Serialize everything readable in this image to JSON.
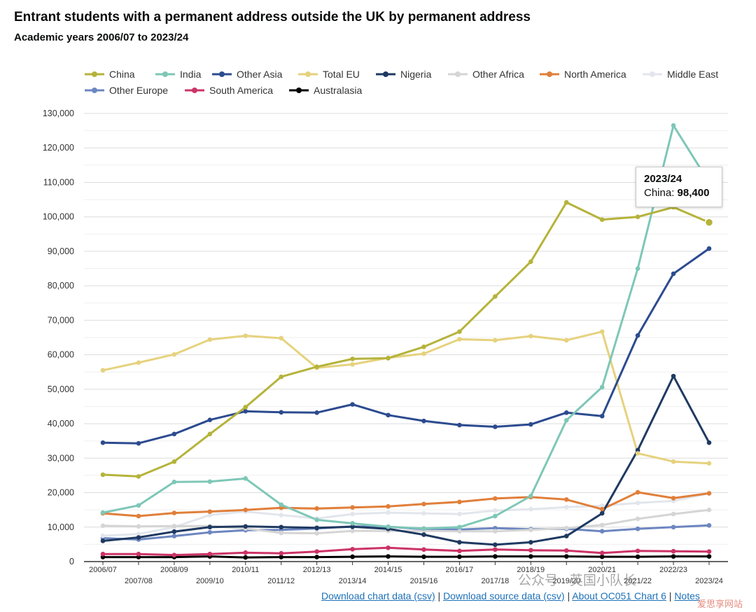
{
  "title": "Entrant students with a permanent address outside the UK by permanent address",
  "subtitle": "Academic years 2006/07 to 2023/24",
  "tooltip": {
    "title": "2023/24",
    "series_label": "China:",
    "value": "98,400"
  },
  "footer": {
    "link1": "Download chart data (csv)",
    "sep1": "|",
    "link2": "Download source data (csv)",
    "sep2": "|",
    "link3": "About OC051 Chart 6",
    "sep3": "|",
    "link4": "Notes"
  },
  "watermark": "公众号 · 英国小队长",
  "watermark2": "爱思享网站",
  "chart_data": {
    "type": "line",
    "categories": [
      "2006/07",
      "2007/08",
      "2008/09",
      "2009/10",
      "2010/11",
      "2011/12",
      "2012/13",
      "2013/14",
      "2014/15",
      "2015/16",
      "2016/17",
      "2017/18",
      "2018/19",
      "2019/20",
      "2020/21",
      "2021/22",
      "2022/23",
      "2023/24"
    ],
    "yticks": [
      "0",
      "10,000",
      "20,000",
      "30,000",
      "40,000",
      "50,000",
      "60,000",
      "70,000",
      "80,000",
      "90,000",
      "100,000",
      "110,000",
      "120,000",
      "130,000"
    ],
    "ylim": [
      0,
      130000
    ],
    "grid": true,
    "legend_position": "top",
    "series": [
      {
        "name": "China",
        "color": "#b5b33a",
        "values": [
          25200,
          24700,
          29000,
          37000,
          44800,
          53600,
          56500,
          58800,
          59000,
          62300,
          66700,
          76900,
          87000,
          104200,
          99200,
          100000,
          102800,
          98400
        ]
      },
      {
        "name": "India",
        "color": "#7ec7b7",
        "values": [
          14200,
          16300,
          23100,
          23200,
          24100,
          16500,
          12100,
          11100,
          10100,
          9600,
          10000,
          13200,
          19000,
          41000,
          50600,
          85000,
          126500,
          110000
        ]
      },
      {
        "name": "Other Asia",
        "color": "#2c4b8f",
        "values": [
          34500,
          34300,
          37000,
          41100,
          43600,
          43300,
          43200,
          45600,
          42500,
          40800,
          39600,
          39100,
          39800,
          43200,
          42200,
          65600,
          83500,
          90800
        ]
      },
      {
        "name": "Total EU",
        "color": "#e6d27e",
        "values": [
          55500,
          57700,
          60100,
          64400,
          65500,
          64800,
          56200,
          57200,
          59100,
          60300,
          64500,
          64200,
          65400,
          64200,
          66700,
          31400,
          29000,
          28500
        ]
      },
      {
        "name": "Nigeria",
        "color": "#1f3a61",
        "values": [
          6000,
          7000,
          8700,
          10000,
          10200,
          10000,
          9800,
          10100,
          9500,
          7800,
          5600,
          4900,
          5600,
          7400,
          14000,
          32300,
          53800,
          34500
        ]
      },
      {
        "name": "Other Africa",
        "color": "#d5d5d5",
        "values": [
          10400,
          10200,
          10300,
          10300,
          9600,
          8300,
          8200,
          8900,
          8900,
          8900,
          8800,
          8800,
          9200,
          9700,
          10600,
          12400,
          13800,
          15000
        ]
      },
      {
        "name": "North America",
        "color": "#e07f3a",
        "values": [
          14000,
          13200,
          14100,
          14500,
          15000,
          15600,
          15400,
          15700,
          16000,
          16700,
          17300,
          18300,
          18700,
          18000,
          15200,
          20100,
          18400,
          19800
        ]
      },
      {
        "name": "Middle East",
        "color": "#e2e6ec",
        "values": [
          7500,
          8000,
          10000,
          13500,
          14500,
          13500,
          12500,
          13800,
          14200,
          14000,
          13800,
          14800,
          15200,
          15800,
          16200,
          17000,
          17600,
          19800
        ]
      },
      {
        "name": "Other Europe",
        "color": "#6c86c0",
        "values": [
          6800,
          6400,
          7400,
          8500,
          9100,
          9200,
          9600,
          10200,
          10100,
          9400,
          9300,
          9700,
          9400,
          9500,
          8800,
          9500,
          10000,
          10500
        ]
      },
      {
        "name": "South America",
        "color": "#cc3366",
        "values": [
          2200,
          2200,
          1900,
          2200,
          2600,
          2400,
          2900,
          3600,
          4000,
          3500,
          3100,
          3500,
          3300,
          3200,
          2500,
          3100,
          3000,
          2900
        ]
      },
      {
        "name": "Australasia",
        "color": "#000000",
        "values": [
          1300,
          1300,
          1300,
          1500,
          1200,
          1300,
          1300,
          1400,
          1500,
          1400,
          1400,
          1500,
          1500,
          1500,
          1400,
          1400,
          1500,
          1500
        ]
      }
    ]
  }
}
